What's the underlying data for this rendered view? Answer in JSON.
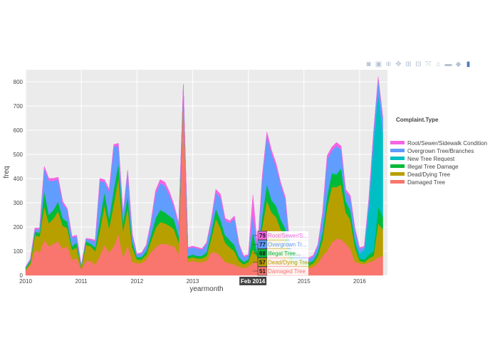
{
  "modebar": [
    {
      "name": "camera-icon",
      "glyph": "◙"
    },
    {
      "name": "save-icon",
      "glyph": "▣"
    },
    {
      "name": "zoom-icon",
      "glyph": "⊕"
    },
    {
      "name": "pan-icon",
      "glyph": "✥"
    },
    {
      "name": "zoom-in-icon",
      "glyph": "⊞"
    },
    {
      "name": "zoom-out-icon",
      "glyph": "⊟"
    },
    {
      "name": "autoscale-icon",
      "glyph": "⤧"
    },
    {
      "name": "home-icon",
      "glyph": "⌂"
    },
    {
      "name": "spike-lines-icon",
      "glyph": "▬"
    },
    {
      "name": "hover-closest-icon",
      "glyph": "◆"
    },
    {
      "name": "hover-compare-icon",
      "glyph": "▮"
    }
  ],
  "chart_data": {
    "type": "area",
    "stacked": true,
    "xlabel": "yearmonth",
    "ylabel": "freq",
    "ylim": [
      0,
      850
    ],
    "yticks": [
      0,
      100,
      200,
      300,
      400,
      500,
      600,
      700,
      800
    ],
    "xlim": [
      "2010-01",
      "2016-07"
    ],
    "xticks": [
      {
        "label": "2010",
        "x": "2010-01"
      },
      {
        "label": "2011",
        "x": "2011-01"
      },
      {
        "label": "2012",
        "x": "2012-01"
      },
      {
        "label": "2013",
        "x": "2013-01"
      },
      {
        "label": "2014",
        "x": "2014-01"
      },
      {
        "label": "2015",
        "x": "2015-01"
      },
      {
        "label": "2016",
        "x": "2016-01"
      }
    ],
    "grid": true,
    "legend": {
      "title": "Complaint.Type",
      "placement": "right"
    },
    "x": [
      "2010-01",
      "2010-02",
      "2010-03",
      "2010-04",
      "2010-05",
      "2010-06",
      "2010-07",
      "2010-08",
      "2010-09",
      "2010-10",
      "2010-11",
      "2010-12",
      "2011-01",
      "2011-02",
      "2011-03",
      "2011-04",
      "2011-05",
      "2011-06",
      "2011-07",
      "2011-08",
      "2011-09",
      "2011-10",
      "2011-11",
      "2011-12",
      "2012-01",
      "2012-02",
      "2012-03",
      "2012-04",
      "2012-05",
      "2012-06",
      "2012-07",
      "2012-08",
      "2012-09",
      "2012-10",
      "2012-11",
      "2012-12",
      "2013-01",
      "2013-02",
      "2013-03",
      "2013-04",
      "2013-05",
      "2013-06",
      "2013-07",
      "2013-08",
      "2013-09",
      "2013-10",
      "2013-11",
      "2013-12",
      "2014-01",
      "2014-02",
      "2014-03",
      "2014-04",
      "2014-05",
      "2014-06",
      "2014-07",
      "2014-08",
      "2014-09",
      "2014-10",
      "2014-11",
      "2014-12",
      "2015-01",
      "2015-02",
      "2015-03",
      "2015-04",
      "2015-05",
      "2015-06",
      "2015-07",
      "2015-08",
      "2015-09",
      "2015-10",
      "2015-11",
      "2015-12",
      "2016-01",
      "2016-02",
      "2016-03",
      "2016-04",
      "2016-05",
      "2016-06"
    ],
    "series": [
      {
        "name": "Damaged Tree",
        "color": "#f8766d",
        "values": [
          20,
          40,
          105,
          95,
          145,
          120,
          130,
          140,
          110,
          120,
          65,
          70,
          25,
          60,
          60,
          45,
          80,
          125,
          95,
          120,
          170,
          75,
          125,
          55,
          50,
          50,
          65,
          95,
          115,
          130,
          130,
          125,
          120,
          90,
          750,
          55,
          60,
          55,
          55,
          60,
          95,
          95,
          80,
          55,
          50,
          45,
          35,
          30,
          35,
          51,
          55,
          95,
          130,
          100,
          90,
          80,
          70,
          40,
          35,
          40,
          30,
          30,
          35,
          50,
          80,
          100,
          135,
          150,
          150,
          130,
          110,
          55,
          50,
          45,
          55,
          60,
          75,
          80
        ]
      },
      {
        "name": "Dead/Dying Tree",
        "color": "#b79f00",
        "values": [
          5,
          10,
          60,
          65,
          140,
          95,
          105,
          125,
          95,
          75,
          40,
          45,
          5,
          65,
          60,
          55,
          105,
          165,
          100,
          175,
          235,
          110,
          155,
          60,
          15,
          15,
          20,
          45,
          80,
          90,
          85,
          80,
          70,
          45,
          15,
          15,
          15,
          15,
          15,
          20,
          55,
          140,
          115,
          80,
          65,
          55,
          25,
          15,
          20,
          57,
          20,
          105,
          180,
          160,
          150,
          110,
          85,
          30,
          15,
          10,
          15,
          10,
          15,
          30,
          65,
          180,
          230,
          215,
          225,
          130,
          120,
          60,
          10,
          10,
          15,
          20,
          140,
          110
        ]
      },
      {
        "name": "Illegal Tree Damage",
        "color": "#00ba38",
        "values": [
          5,
          10,
          15,
          15,
          65,
          35,
          35,
          40,
          30,
          25,
          15,
          20,
          5,
          15,
          10,
          15,
          45,
          55,
          40,
          60,
          60,
          35,
          50,
          20,
          10,
          10,
          15,
          25,
          40,
          50,
          45,
          40,
          40,
          25,
          15,
          10,
          10,
          10,
          10,
          15,
          30,
          40,
          35,
          30,
          30,
          25,
          15,
          10,
          10,
          68,
          15,
          45,
          65,
          50,
          45,
          40,
          35,
          15,
          10,
          10,
          10,
          10,
          10,
          15,
          30,
          45,
          55,
          50,
          65,
          45,
          35,
          25,
          10,
          10,
          15,
          20,
          70,
          50
        ]
      },
      {
        "name": "New Tree Request",
        "color": "#00bfc4",
        "values": [
          1,
          1,
          1,
          1,
          1,
          1,
          1,
          1,
          1,
          1,
          1,
          1,
          1,
          1,
          1,
          1,
          1,
          1,
          1,
          1,
          1,
          1,
          1,
          1,
          1,
          1,
          1,
          1,
          1,
          1,
          1,
          1,
          1,
          1,
          1,
          1,
          1,
          1,
          1,
          1,
          1,
          1,
          1,
          1,
          1,
          1,
          1,
          1,
          1,
          1,
          1,
          2,
          3,
          3,
          3,
          3,
          3,
          3,
          3,
          3,
          3,
          3,
          3,
          3,
          5,
          5,
          5,
          5,
          5,
          5,
          5,
          10,
          20,
          40,
          200,
          450,
          470,
          350
        ]
      },
      {
        "name": "Overgrown Tree/Branches",
        "color": "#619cff",
        "values": [
          3,
          5,
          10,
          15,
          90,
          140,
          120,
          90,
          60,
          50,
          35,
          25,
          5,
          10,
          15,
          25,
          160,
          40,
          110,
          175,
          70,
          35,
          100,
          30,
          10,
          15,
          20,
          45,
          100,
          110,
          110,
          85,
          50,
          45,
          5,
          30,
          30,
          30,
          25,
          35,
          40,
          65,
          90,
          60,
          70,
          110,
          50,
          20,
          15,
          77,
          20,
          150,
          200,
          190,
          160,
          140,
          120,
          25,
          15,
          20,
          20,
          15,
          15,
          25,
          70,
          150,
          90,
          115,
          75,
          35,
          50,
          40,
          20,
          10,
          30,
          40,
          60,
          60
        ]
      },
      {
        "name": "Root/Sewer/Sidewalk Condition",
        "color": "#f564e3",
        "values": [
          2,
          2,
          5,
          5,
          10,
          10,
          10,
          10,
          10,
          5,
          5,
          5,
          2,
          2,
          5,
          5,
          10,
          10,
          10,
          10,
          10,
          5,
          5,
          5,
          3,
          3,
          5,
          10,
          15,
          15,
          15,
          15,
          10,
          10,
          5,
          5,
          5,
          5,
          5,
          5,
          10,
          15,
          15,
          10,
          10,
          10,
          5,
          5,
          5,
          79,
          5,
          15,
          15,
          15,
          15,
          10,
          10,
          5,
          5,
          5,
          5,
          5,
          5,
          5,
          10,
          15,
          15,
          15,
          15,
          10,
          10,
          5,
          5,
          5,
          5,
          5,
          5,
          5
        ]
      }
    ],
    "legend_order": [
      "Root/Sewer/Sidewalk Condition",
      "Overgrown Tree/Branches",
      "New Tree Request",
      "Illegal Tree Damage",
      "Dead/Dying Tree",
      "Damaged Tree"
    ],
    "hover": {
      "x_label": "Feb 2014",
      "x": "2014-02",
      "items": [
        {
          "value": "79",
          "label": "Root/Sewer/S...",
          "color": "#f564e3"
        },
        {
          "value": "77",
          "label": "Overgrown Tr...",
          "color": "#619cff"
        },
        {
          "value": "68",
          "label": "Illegal Tree...",
          "color": "#00ba38"
        },
        {
          "value": "57",
          "label": "Dead/Dying Tree",
          "color": "#b79f00"
        },
        {
          "value": "51",
          "label": "Damaged Tree",
          "color": "#f8766d"
        }
      ]
    }
  }
}
